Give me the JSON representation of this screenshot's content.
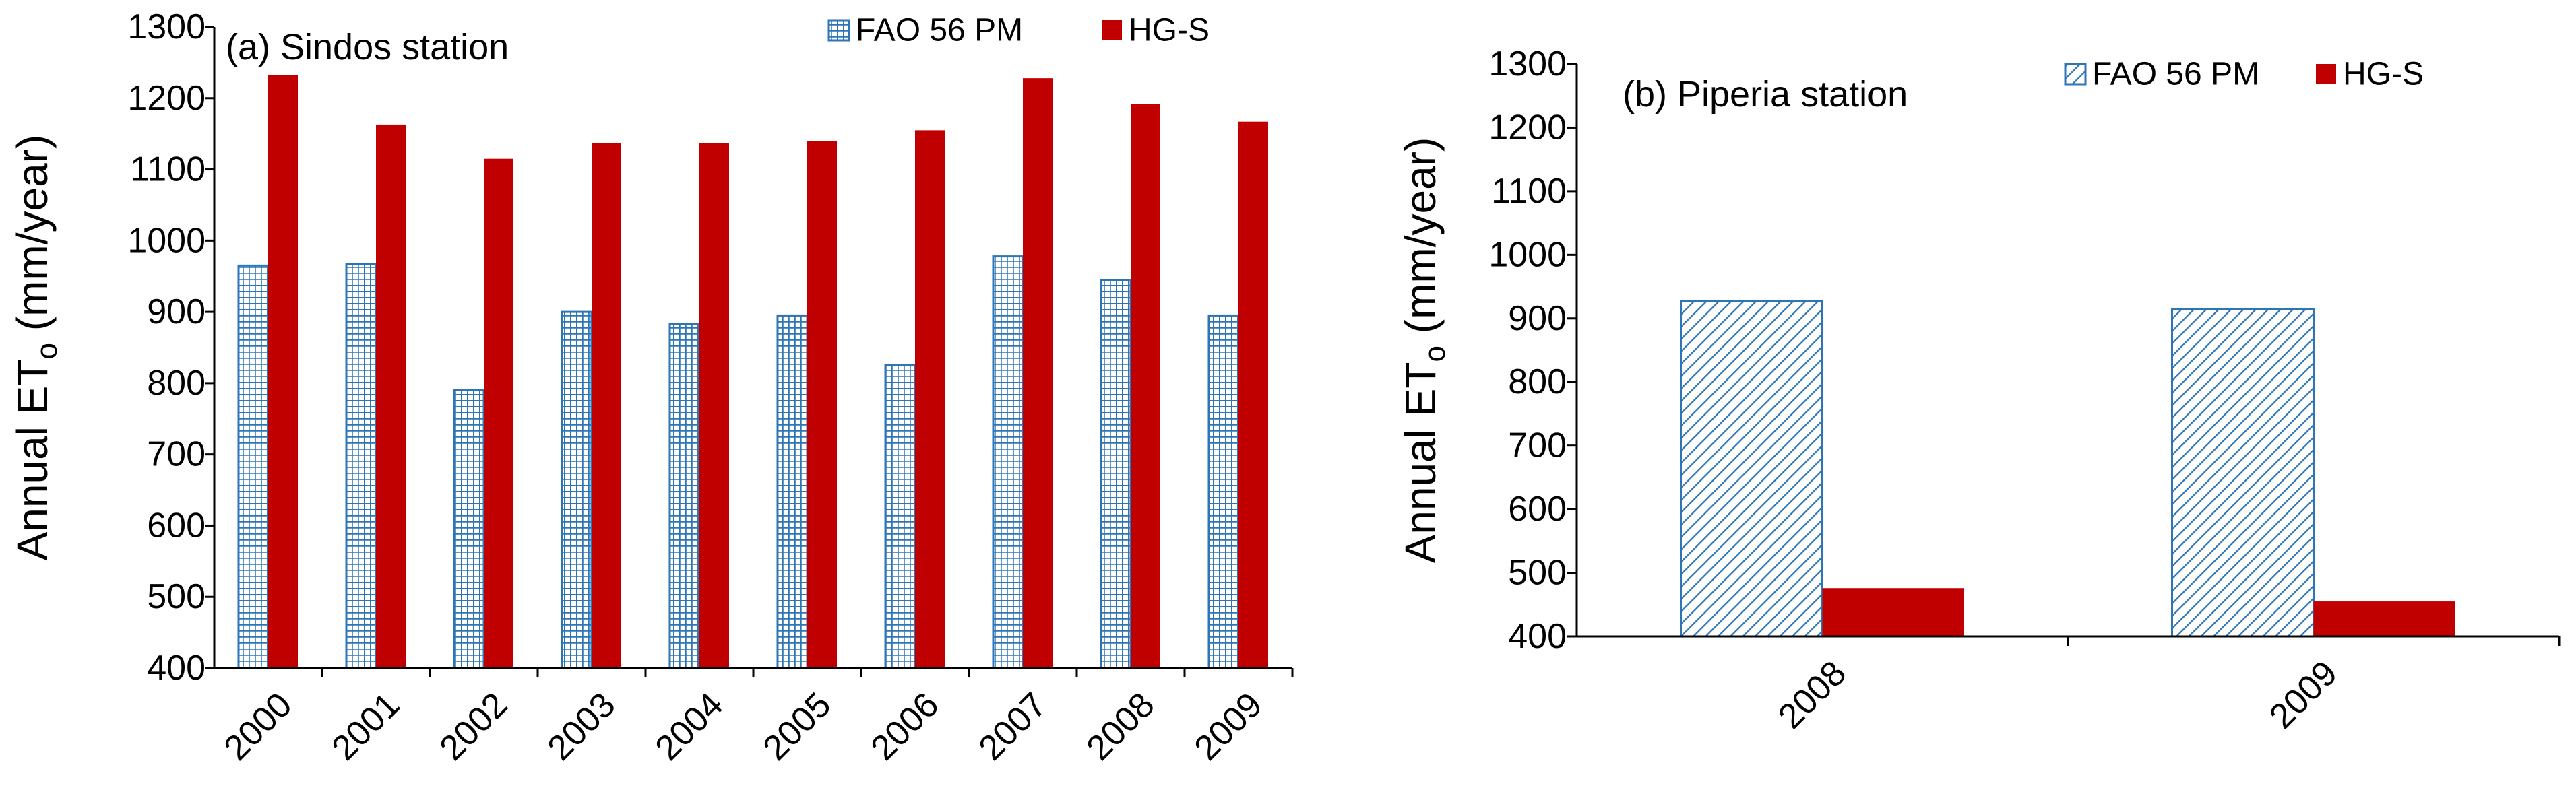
{
  "chart_data": [
    {
      "type": "bar",
      "title": "(a) Sindos station",
      "ylabel": "Annual ET",
      "ylabel_subscript": "o",
      "ylabel_unit": " (mm/year)",
      "xlabel": "",
      "ylim": [
        400,
        1300
      ],
      "ytick_step": 100,
      "categories": [
        "2000",
        "2001",
        "2002",
        "2003",
        "2004",
        "2005",
        "2006",
        "2007",
        "2008",
        "2009"
      ],
      "series": [
        {
          "name": "FAO 56 PM",
          "pattern": "grid",
          "values": [
            965,
            967,
            790,
            900,
            883,
            895,
            825,
            978,
            945,
            895
          ]
        },
        {
          "name": "HG-S",
          "pattern": "solid",
          "values": [
            1232,
            1163,
            1115,
            1137,
            1137,
            1140,
            1155,
            1228,
            1192,
            1167
          ]
        }
      ],
      "legend": "top-right"
    },
    {
      "type": "bar",
      "title": "(b) Piperia station",
      "ylabel": "Annual ET",
      "ylabel_subscript": "o",
      "ylabel_unit": " (mm/year)",
      "xlabel": "",
      "ylim": [
        400,
        1300
      ],
      "ytick_step": 100,
      "categories": [
        "2008",
        "2009"
      ],
      "series": [
        {
          "name": "FAO 56 PM",
          "pattern": "hatch",
          "values": [
            927,
            915
          ]
        },
        {
          "name": "HG-S",
          "pattern": "solid",
          "values": [
            476,
            455
          ]
        }
      ],
      "legend": "top-right"
    }
  ],
  "colors": {
    "fao_fill": "#c6dcf2",
    "fao_line": "#2e75b6",
    "hgs_fill": "#c00000"
  }
}
